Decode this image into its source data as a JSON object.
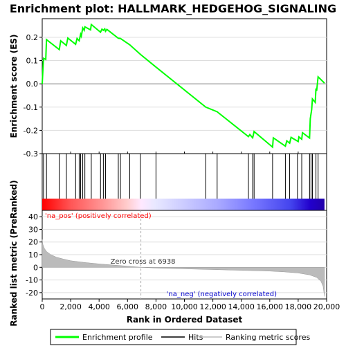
{
  "chart_data": {
    "type": "line",
    "title": "Enrichment plot: HALLMARK_HEDGEHOG_SIGNALING",
    "top_panel": {
      "ylabel": "Enrichment score (ES)",
      "ylim": [
        -0.3,
        0.28
      ],
      "yticks": [
        -0.3,
        -0.2,
        -0.1,
        0.0,
        0.1,
        0.2
      ],
      "ytick_labels": [
        "-0.3",
        "-0.2",
        "-0.1",
        "0.0",
        "0.1",
        "0.2"
      ],
      "series_color": "#00ff00",
      "es_points": [
        [
          0,
          0.0
        ],
        [
          90,
          0.11
        ],
        [
          250,
          0.105
        ],
        [
          300,
          0.19
        ],
        [
          1200,
          0.147
        ],
        [
          1300,
          0.185
        ],
        [
          1700,
          0.165
        ],
        [
          1800,
          0.197
        ],
        [
          2350,
          0.17
        ],
        [
          2450,
          0.195
        ],
        [
          2600,
          0.185
        ],
        [
          2700,
          0.213
        ],
        [
          2750,
          0.205
        ],
        [
          2850,
          0.24
        ],
        [
          2950,
          0.23
        ],
        [
          3000,
          0.245
        ],
        [
          3400,
          0.232
        ],
        [
          3450,
          0.255
        ],
        [
          4100,
          0.222
        ],
        [
          4200,
          0.235
        ],
        [
          4300,
          0.23
        ],
        [
          4400,
          0.236
        ],
        [
          4450,
          0.226
        ],
        [
          4550,
          0.234
        ],
        [
          5350,
          0.196
        ],
        [
          5500,
          0.195
        ],
        [
          6150,
          0.168
        ],
        [
          6938,
          0.125
        ],
        [
          8000,
          0.072
        ],
        [
          11500,
          -0.1
        ],
        [
          12300,
          -0.12
        ],
        [
          14500,
          -0.227
        ],
        [
          14600,
          -0.218
        ],
        [
          14800,
          -0.232
        ],
        [
          14900,
          -0.205
        ],
        [
          16200,
          -0.272
        ],
        [
          16250,
          -0.232
        ],
        [
          17100,
          -0.268
        ],
        [
          17200,
          -0.245
        ],
        [
          17400,
          -0.255
        ],
        [
          17500,
          -0.23
        ],
        [
          18000,
          -0.248
        ],
        [
          18050,
          -0.228
        ],
        [
          18250,
          -0.238
        ],
        [
          18300,
          -0.21
        ],
        [
          18800,
          -0.233
        ],
        [
          18850,
          -0.15
        ],
        [
          18950,
          -0.11
        ],
        [
          19000,
          -0.065
        ],
        [
          19200,
          -0.08
        ],
        [
          19250,
          -0.02
        ],
        [
          19300,
          -0.03
        ],
        [
          19400,
          0.03
        ],
        [
          19850,
          0.003
        ]
      ]
    },
    "hits": [
      0,
      90,
      300,
      1200,
      1700,
      2350,
      2600,
      2700,
      2850,
      3000,
      3450,
      4100,
      4300,
      4450,
      5350,
      5500,
      6150,
      6900,
      8000,
      11500,
      12300,
      14500,
      14800,
      14900,
      16200,
      17100,
      17400,
      17950,
      18250,
      18800,
      18900,
      19000,
      19250,
      19400
    ],
    "heatbar_gradient": [
      [
        0.0,
        "#ff0000"
      ],
      [
        0.1,
        "#ff5555"
      ],
      [
        0.22,
        "#ff9999"
      ],
      [
        0.3,
        "#ffcccc"
      ],
      [
        0.35,
        "#ffe8ff"
      ],
      [
        0.4,
        "#e8e8ff"
      ],
      [
        0.5,
        "#ccccff"
      ],
      [
        0.62,
        "#aaaaff"
      ],
      [
        0.75,
        "#7777ff"
      ],
      [
        0.88,
        "#4444ee"
      ],
      [
        0.95,
        "#2200cc"
      ],
      [
        1.0,
        "#2200aa"
      ]
    ],
    "bottom_panel": {
      "ylabel": "Ranked list metric (PreRanked)",
      "ylim": [
        -25,
        45
      ],
      "yticks": [
        -20,
        -10,
        0,
        10,
        20,
        30,
        40
      ],
      "ytick_labels": [
        "-20",
        "-10",
        "0",
        "10",
        "20",
        "30",
        "40"
      ],
      "metric_points": [
        [
          0,
          22
        ],
        [
          50,
          18
        ],
        [
          150,
          15
        ],
        [
          300,
          12.5
        ],
        [
          600,
          10
        ],
        [
          1000,
          8
        ],
        [
          1500,
          6.5
        ],
        [
          2000,
          5.2
        ],
        [
          3000,
          3.8
        ],
        [
          4000,
          2.7
        ],
        [
          5000,
          1.8
        ],
        [
          6000,
          0.9
        ],
        [
          6938,
          0
        ],
        [
          8000,
          -0.6
        ],
        [
          10000,
          -1.2
        ],
        [
          12000,
          -1.8
        ],
        [
          14000,
          -2.4
        ],
        [
          16000,
          -3.0
        ],
        [
          17000,
          -3.6
        ],
        [
          18000,
          -4.5
        ],
        [
          18800,
          -6
        ],
        [
          19300,
          -8
        ],
        [
          19600,
          -11
        ],
        [
          19750,
          -15
        ],
        [
          19850,
          -23
        ]
      ],
      "zero_cross_label": "Zero cross at 6938",
      "zero_cross": 6938,
      "pos_label": "'na_pos' (positively correlated)",
      "neg_label": "'na_neg' (negatively correlated)"
    },
    "xlabel": "Rank in Ordered Dataset",
    "xlim": [
      0,
      20000
    ],
    "xticks": [
      0,
      2000,
      4000,
      6000,
      8000,
      10000,
      12000,
      14000,
      16000,
      18000,
      20000
    ],
    "xtick_labels": [
      "0",
      "2,000",
      "4,000",
      "6,000",
      "8,000",
      "10,000",
      "12,000",
      "14,000",
      "16,000",
      "18,000",
      "20,000"
    ],
    "n_total": 19850,
    "legend": {
      "placement": "bottom",
      "items": [
        {
          "label": "Enrichment profile",
          "color": "#00ff00"
        },
        {
          "label": "Hits",
          "color": "#000000"
        },
        {
          "label": "Ranking metric scores",
          "color": "#bbbbbb"
        }
      ]
    },
    "colors": {
      "pos_text": "#ff0000",
      "neg_text": "#0000cc",
      "metric_fill": "#bbbbbb",
      "zero_line": "#aaaaaa"
    }
  }
}
